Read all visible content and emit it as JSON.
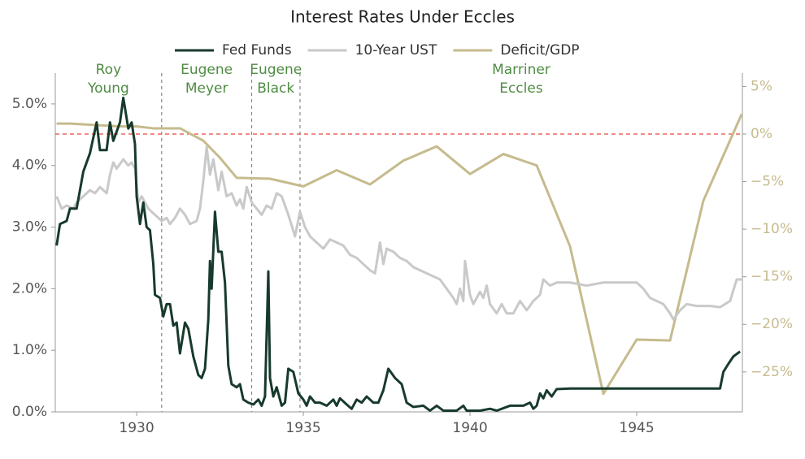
{
  "chart_data": {
    "type": "line",
    "title": "Interest Rates Under Eccles",
    "xlim": [
      1927.56,
      1948.17
    ],
    "xticks": [
      1930,
      1935,
      1940,
      1945
    ],
    "ylim": [
      0,
      5.5
    ],
    "yticks": [
      {
        "value": 0,
        "label": "0.0%"
      },
      {
        "value": 1,
        "label": "1.0%"
      },
      {
        "value": 2,
        "label": "2.0%"
      },
      {
        "value": 3,
        "label": "3.0%"
      },
      {
        "value": 4,
        "label": "4.0%"
      },
      {
        "value": 5,
        "label": "5.0%"
      }
    ],
    "y2lim": [
      -29.2,
      6.4
    ],
    "y2ticks": [
      {
        "value": -25,
        "label": "−25%"
      },
      {
        "value": -20,
        "label": "−20%"
      },
      {
        "value": -15,
        "label": "−15%"
      },
      {
        "value": -10,
        "label": "−10%"
      },
      {
        "value": -5,
        "label": "−5%"
      },
      {
        "value": 0,
        "label": "0%"
      },
      {
        "value": 5,
        "label": "5%"
      }
    ],
    "reference_y2": 0,
    "markers": [
      1930.75,
      1933.45,
      1934.9
    ],
    "annotations": [
      [
        "Roy",
        "Young"
      ],
      [
        "Eugene",
        "Meyer"
      ],
      [
        "Eugene",
        "Black"
      ],
      [
        "Marriner",
        "Eccles"
      ]
    ],
    "series": [
      {
        "name": "Fed Funds",
        "color": "#173a2c",
        "x": [
          1927.6,
          1927.7,
          1927.9,
          1928.0,
          1928.2,
          1928.4,
          1928.6,
          1928.8,
          1928.9,
          1929.1,
          1929.2,
          1929.3,
          1929.5,
          1929.6,
          1929.75,
          1929.85,
          1929.95,
          1930.0,
          1930.1,
          1930.2,
          1930.3,
          1930.4,
          1930.5,
          1930.55,
          1930.7,
          1930.8,
          1930.9,
          1931.0,
          1931.1,
          1931.2,
          1931.3,
          1931.45,
          1931.55,
          1931.7,
          1931.85,
          1931.95,
          1932.05,
          1932.15,
          1932.2,
          1932.25,
          1932.35,
          1932.45,
          1932.55,
          1932.65,
          1932.75,
          1932.85,
          1933.0,
          1933.1,
          1933.2,
          1933.35,
          1933.5,
          1933.65,
          1933.75,
          1933.85,
          1933.95,
          1934.0,
          1934.1,
          1934.2,
          1934.35,
          1934.45,
          1934.55,
          1934.7,
          1934.85,
          1935.0,
          1935.1,
          1935.2,
          1935.35,
          1935.5,
          1935.7,
          1935.9,
          1936.0,
          1936.1,
          1936.3,
          1936.45,
          1936.6,
          1936.75,
          1936.9,
          1937.1,
          1937.25,
          1937.4,
          1937.55,
          1937.75,
          1937.95,
          1938.1,
          1938.3,
          1938.6,
          1938.8,
          1939.0,
          1939.2,
          1939.6,
          1939.8,
          1939.9,
          1940.3,
          1940.6,
          1940.8,
          1941.2,
          1941.6,
          1941.8,
          1941.9,
          1942.0,
          1942.1,
          1942.2,
          1942.3,
          1942.45,
          1942.6,
          1943.0,
          1945.0,
          1947.5,
          1947.6,
          1947.75,
          1947.9,
          1948.1
        ],
        "values": [
          2.7,
          3.05,
          3.1,
          3.3,
          3.3,
          3.9,
          4.2,
          4.7,
          4.25,
          4.25,
          4.7,
          4.4,
          4.7,
          5.1,
          4.6,
          4.7,
          4.35,
          3.5,
          3.05,
          3.4,
          3.0,
          2.95,
          2.4,
          1.9,
          1.85,
          1.55,
          1.75,
          1.75,
          1.4,
          1.45,
          0.95,
          1.45,
          1.35,
          0.9,
          0.6,
          0.55,
          0.7,
          1.5,
          2.45,
          2.0,
          3.25,
          2.6,
          2.6,
          2.1,
          0.75,
          0.45,
          0.4,
          0.45,
          0.2,
          0.15,
          0.12,
          0.2,
          0.1,
          0.25,
          2.28,
          0.55,
          0.25,
          0.4,
          0.1,
          0.15,
          0.7,
          0.65,
          0.3,
          0.2,
          0.1,
          0.25,
          0.15,
          0.15,
          0.1,
          0.2,
          0.1,
          0.22,
          0.12,
          0.05,
          0.2,
          0.15,
          0.25,
          0.15,
          0.15,
          0.35,
          0.7,
          0.55,
          0.45,
          0.15,
          0.08,
          0.1,
          0.02,
          0.1,
          0.02,
          0.02,
          0.1,
          0.02,
          0.02,
          0.05,
          0.02,
          0.1,
          0.1,
          0.15,
          0.05,
          0.1,
          0.3,
          0.22,
          0.35,
          0.25,
          0.37,
          0.38,
          0.38,
          0.38,
          0.65,
          0.78,
          0.9,
          0.98
        ]
      },
      {
        "name": "10-Year UST",
        "color": "#c9c9c9",
        "x": [
          1927.6,
          1927.75,
          1927.9,
          1928.1,
          1928.2,
          1928.4,
          1928.6,
          1928.75,
          1928.9,
          1929.1,
          1929.2,
          1929.3,
          1929.4,
          1929.6,
          1929.75,
          1929.85,
          1929.95,
          1930.05,
          1930.15,
          1930.35,
          1930.55,
          1930.75,
          1930.9,
          1931.0,
          1931.15,
          1931.3,
          1931.45,
          1931.6,
          1931.8,
          1931.9,
          1932.0,
          1932.1,
          1932.2,
          1932.3,
          1932.45,
          1932.55,
          1932.7,
          1932.85,
          1933.0,
          1933.1,
          1933.2,
          1933.3,
          1933.45,
          1933.6,
          1933.75,
          1933.9,
          1934.05,
          1934.2,
          1934.35,
          1934.55,
          1934.75,
          1934.9,
          1935.05,
          1935.2,
          1935.4,
          1935.6,
          1935.8,
          1936.0,
          1936.2,
          1936.4,
          1936.6,
          1936.8,
          1937.0,
          1937.15,
          1937.3,
          1937.4,
          1937.5,
          1937.7,
          1937.9,
          1938.1,
          1938.3,
          1938.5,
          1938.7,
          1938.9,
          1939.1,
          1939.3,
          1939.5,
          1939.6,
          1939.7,
          1939.8,
          1939.85,
          1940.0,
          1940.1,
          1940.3,
          1940.4,
          1940.5,
          1940.6,
          1940.8,
          1940.95,
          1941.1,
          1941.3,
          1941.5,
          1941.7,
          1941.9,
          1942.1,
          1942.2,
          1942.4,
          1942.6,
          1943.0,
          1943.5,
          1944.0,
          1944.5,
          1945.0,
          1945.2,
          1945.4,
          1945.6,
          1945.8,
          1946.0,
          1946.1,
          1946.3,
          1946.5,
          1946.8,
          1947.2,
          1947.5,
          1947.8,
          1948.0,
          1948.15
        ],
        "values": [
          3.5,
          3.3,
          3.35,
          3.3,
          3.4,
          3.5,
          3.6,
          3.55,
          3.65,
          3.55,
          3.85,
          4.05,
          3.95,
          4.1,
          4.0,
          4.05,
          3.95,
          3.4,
          3.5,
          3.3,
          3.2,
          3.1,
          3.15,
          3.05,
          3.15,
          3.3,
          3.2,
          3.05,
          3.1,
          3.3,
          3.75,
          4.3,
          3.85,
          4.1,
          3.6,
          3.9,
          3.5,
          3.55,
          3.35,
          3.45,
          3.3,
          3.65,
          3.4,
          3.3,
          3.2,
          3.35,
          3.3,
          3.55,
          3.5,
          3.2,
          2.85,
          3.25,
          3.0,
          2.85,
          2.75,
          2.65,
          2.8,
          2.75,
          2.7,
          2.55,
          2.5,
          2.4,
          2.3,
          2.25,
          2.75,
          2.4,
          2.65,
          2.6,
          2.5,
          2.45,
          2.35,
          2.3,
          2.25,
          2.2,
          2.15,
          2.0,
          1.85,
          1.75,
          2.0,
          1.8,
          2.45,
          1.9,
          1.75,
          1.95,
          1.85,
          2.05,
          1.75,
          1.6,
          1.75,
          1.6,
          1.6,
          1.8,
          1.65,
          1.8,
          1.9,
          2.15,
          2.05,
          2.1,
          2.1,
          2.05,
          2.1,
          2.1,
          2.1,
          2.0,
          1.85,
          1.8,
          1.75,
          1.6,
          1.5,
          1.65,
          1.75,
          1.72,
          1.72,
          1.7,
          1.8,
          2.15,
          2.15
        ]
      },
      {
        "name": "Deficit/GDP",
        "color": "#c6bb8d",
        "axis": "y2",
        "x": [
          1927.6,
          1928.0,
          1929.5,
          1930.0,
          1930.5,
          1931.0,
          1931.3,
          1932.0,
          1932.5,
          1933.0,
          1934.0,
          1935.0,
          1936.0,
          1937.0,
          1938.0,
          1939.0,
          1940.0,
          1941.0,
          1942.0,
          1943.0,
          1944.0,
          1945.0,
          1946.0,
          1947.0,
          1948.15
        ],
        "values": [
          1.1,
          1.1,
          0.8,
          0.8,
          0.6,
          0.6,
          0.6,
          -0.7,
          -2.5,
          -4.6,
          -4.7,
          -5.5,
          -3.8,
          -5.3,
          -2.8,
          -1.3,
          -4.2,
          -2.1,
          -3.3,
          -11.8,
          -27.3,
          -21.6,
          -21.7,
          -7.0,
          2.1
        ]
      }
    ]
  }
}
